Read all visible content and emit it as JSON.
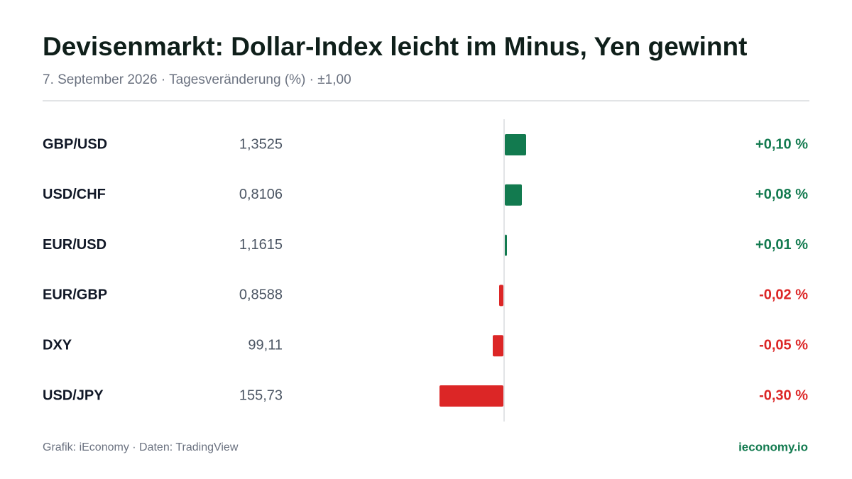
{
  "chart_data": {
    "type": "bar",
    "orientation": "horizontal",
    "title": "Devisenmarkt: Dollar-Index leicht im Minus, Yen gewinnt",
    "subtitle": "7. September 2026 · Tagesveränderung (%) · ±1,00",
    "categories": [
      "GBP/USD",
      "USD/CHF",
      "EUR/USD",
      "EUR/GBP",
      "DXY",
      "USD/JPY"
    ],
    "prices": [
      "1,3525",
      "0,8106",
      "1,1615",
      "0,8588",
      "99,11",
      "155,73"
    ],
    "values": [
      0.1,
      0.08,
      0.01,
      -0.02,
      -0.05,
      -0.3
    ],
    "value_labels": [
      "+0,10 %",
      "+0,08 %",
      "+0,01 %",
      "-0,02 %",
      "-0,05 %",
      "-0,30 %"
    ],
    "positive_color": "#127a4f",
    "negative_color": "#dc2626",
    "xlim": [
      -1,
      1
    ]
  },
  "footer": {
    "source": "Grafik: iEconomy · Daten: TradingView",
    "brand": "ieconomy.io"
  }
}
